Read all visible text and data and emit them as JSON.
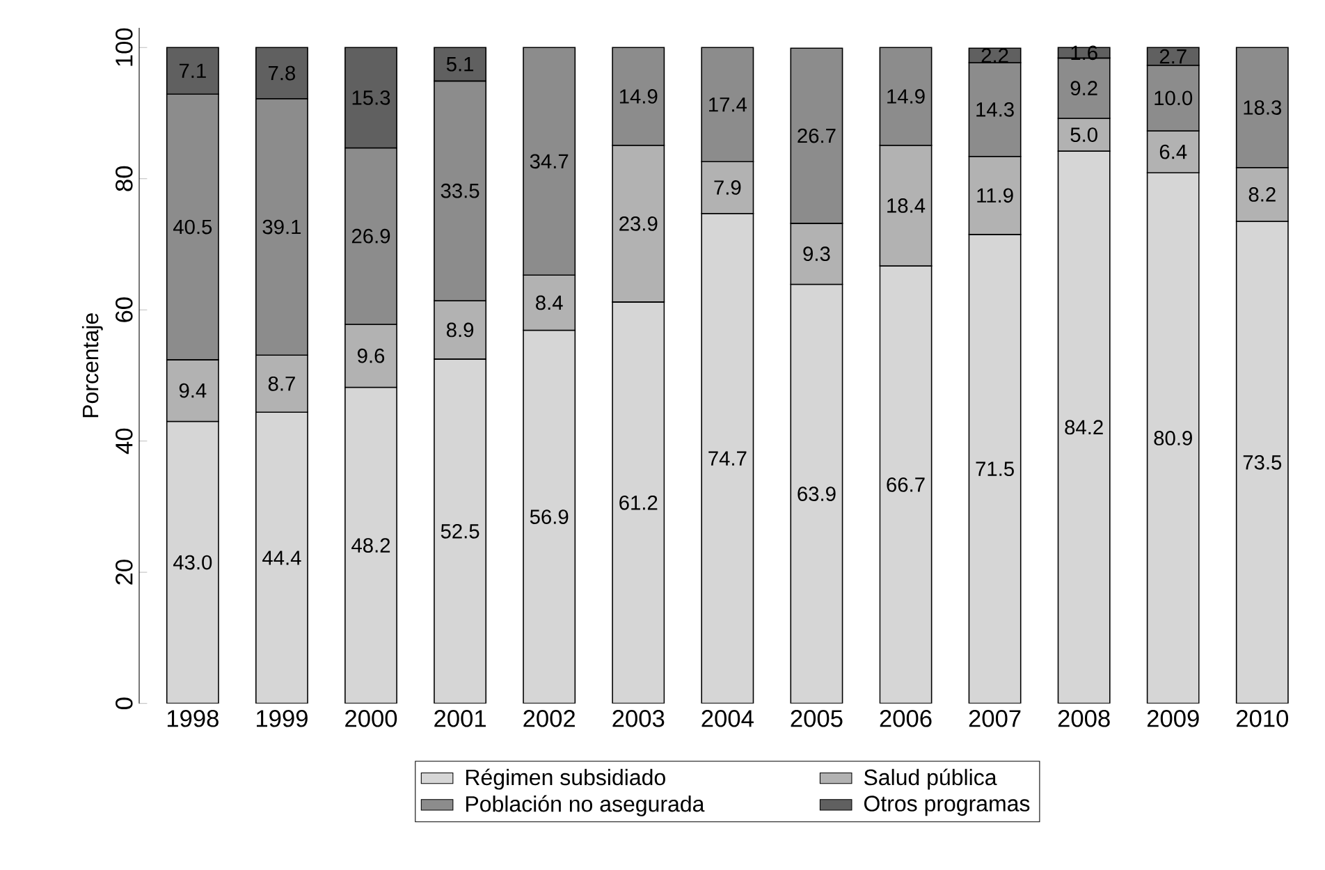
{
  "chart_data": {
    "type": "bar",
    "stacked": true,
    "ylabel": "Porcentaje",
    "ylim": [
      0,
      103
    ],
    "yticks": [
      0,
      20,
      40,
      60,
      80,
      100
    ],
    "grid": false,
    "legend": "bottom",
    "categories": [
      "1998",
      "1999",
      "2000",
      "2001",
      "2002",
      "2003",
      "2004",
      "2005",
      "2006",
      "2007",
      "2008",
      "2009",
      "2010"
    ],
    "series": [
      {
        "name": "Régimen subsidiado",
        "color": "#d6d6d6",
        "values": [
          43.0,
          44.4,
          48.2,
          52.5,
          56.9,
          61.2,
          74.7,
          63.9,
          66.7,
          71.5,
          84.2,
          80.9,
          73.5
        ],
        "value_labels": [
          "43.0",
          "44.4",
          "48.2",
          "52.5",
          "56.9",
          "61.2",
          "74.7",
          "63.9",
          "66.7",
          "71.5",
          "84.2",
          "80.9",
          "73.5"
        ]
      },
      {
        "name": "Salud pública",
        "color": "#b2b2b2",
        "values": [
          9.4,
          8.7,
          9.6,
          8.9,
          8.4,
          23.9,
          7.9,
          9.3,
          18.4,
          11.9,
          5.0,
          6.4,
          8.2
        ],
        "value_labels": [
          "9.4",
          "8.7",
          "9.6",
          "8.9",
          "8.4",
          "23.9",
          "7.9",
          "9.3",
          "18.4",
          "11.9",
          "5.0",
          "6.4",
          "8.2"
        ]
      },
      {
        "name": "Población no asegurada",
        "color": "#8c8c8c",
        "values": [
          40.5,
          39.1,
          26.9,
          33.5,
          34.7,
          14.9,
          17.4,
          26.7,
          14.9,
          14.3,
          9.2,
          10.0,
          18.3
        ],
        "value_labels": [
          "40.5",
          "39.1",
          "26.9",
          "33.5",
          "34.7",
          "14.9",
          "17.4",
          "26.7",
          "14.9",
          "14.3",
          "9.2",
          "10.0",
          "18.3"
        ]
      },
      {
        "name": "Otros programas",
        "color": "#606060",
        "values": [
          7.1,
          7.8,
          15.3,
          5.1,
          null,
          null,
          null,
          null,
          null,
          2.2,
          1.6,
          2.7,
          null
        ],
        "value_labels": [
          "7.1",
          "7.8",
          "15.3",
          "5.1",
          null,
          null,
          null,
          null,
          null,
          "2.2",
          "1.6",
          "2.7",
          null
        ]
      }
    ]
  }
}
